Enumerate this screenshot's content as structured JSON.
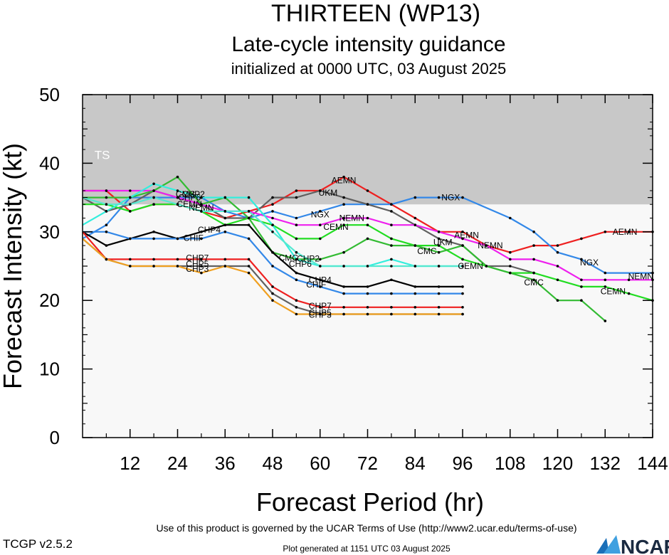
{
  "header": {
    "title": "THIRTEEN (WP13)",
    "subtitle": "Late-cycle intensity guidance",
    "init": "initialized at 0000 UTC, 03 August 2025"
  },
  "footer": {
    "terms": "Use of this product is governed by the UCAR Terms of Use (http://www2.ucar.edu/terms-of-use)",
    "generated": "Plot generated at 1151 UTC   03 August 2025",
    "version": "TCGP v2.5.2",
    "logo": "NCAR"
  },
  "chart_data": {
    "type": "line",
    "xlabel": "Forecast Period (hr)",
    "ylabel": "Forecast Intensity (kt)",
    "xlim": [
      0,
      144
    ],
    "ylim": [
      0,
      50
    ],
    "xticks": [
      12,
      24,
      36,
      48,
      60,
      72,
      84,
      96,
      108,
      120,
      132,
      144
    ],
    "yticks": [
      0,
      10,
      20,
      30,
      40,
      50
    ],
    "band": {
      "label": "TS",
      "from": 34,
      "to": 50,
      "color": "#c8c8c8"
    },
    "background_color": "#f8f8f8",
    "series": [
      {
        "name": "AEMN",
        "color": "#ee2020",
        "x": [
          0,
          6,
          12,
          18,
          24,
          30,
          36,
          42,
          48,
          54,
          60,
          66,
          72,
          78,
          84,
          90,
          96,
          102,
          108,
          114,
          120,
          126,
          132,
          138,
          144
        ],
        "values": [
          36,
          36,
          33,
          34,
          34,
          33,
          32,
          33,
          34,
          36,
          36,
          38,
          36,
          34,
          32,
          30,
          30,
          28,
          27,
          28,
          28,
          29,
          30,
          30,
          30
        ],
        "labels": [
          {
            "text": "AEMN",
            "x": 66,
            "y": 37.5
          },
          {
            "text": "AEMN",
            "x": 97,
            "y": 29.5
          },
          {
            "text": "AEMN",
            "x": 137,
            "y": 30
          }
        ]
      },
      {
        "name": "NGX",
        "color": "#3388e8",
        "x": [
          0,
          6,
          12,
          18,
          24,
          30,
          36,
          42,
          48,
          54,
          60,
          66,
          72,
          78,
          84,
          90,
          96,
          108,
          114,
          120,
          126,
          132,
          144
        ],
        "values": [
          29,
          31,
          35,
          35,
          35,
          35,
          33,
          32,
          33,
          32,
          33,
          34,
          34,
          34,
          35,
          35,
          35,
          32,
          30,
          27,
          26,
          24,
          24
        ],
        "labels": [
          {
            "text": "NGX",
            "x": 60,
            "y": 32.5
          },
          {
            "text": "NGX",
            "x": 93,
            "y": 35
          },
          {
            "text": "NGX",
            "x": 128,
            "y": 25.5
          }
        ]
      },
      {
        "name": "UKM",
        "color": "#606060",
        "x": [
          0,
          6,
          12,
          18,
          24,
          30,
          36,
          42,
          48,
          54,
          60,
          66,
          72,
          78,
          84,
          90,
          96,
          102,
          108,
          114
        ],
        "values": [
          35,
          33,
          34,
          36,
          35,
          34,
          32,
          32,
          35,
          35,
          36,
          35,
          34,
          33,
          31,
          29,
          28,
          25,
          25,
          24
        ],
        "labels": [
          {
            "text": "UKM",
            "x": 62,
            "y": 35.7
          },
          {
            "text": "UKM",
            "x": 91,
            "y": 28.5
          }
        ]
      },
      {
        "name": "NEMN",
        "color": "#ee20ee",
        "x": [
          0,
          6,
          12,
          18,
          24,
          30,
          36,
          42,
          48,
          54,
          60,
          66,
          72,
          78,
          84,
          90,
          96,
          102,
          108,
          114,
          120,
          126,
          132,
          138,
          144
        ],
        "values": [
          36,
          36,
          36,
          36,
          35,
          34,
          33,
          33,
          32,
          31,
          31,
          32,
          32,
          31,
          31,
          30,
          29,
          28,
          26,
          26,
          25,
          23,
          23,
          23,
          23
        ],
        "labels": [
          {
            "text": "NEMN",
            "x": 30,
            "y": 33.5
          },
          {
            "text": "NEMN",
            "x": 68,
            "y": 32
          },
          {
            "text": "NEMN",
            "x": 103,
            "y": 28
          },
          {
            "text": "NEMN",
            "x": 141,
            "y": 23.5
          }
        ]
      },
      {
        "name": "CEMN",
        "color": "#22dd22",
        "x": [
          0,
          6,
          12,
          18,
          24,
          30,
          36,
          42,
          48,
          54,
          60,
          66,
          72,
          78,
          84,
          90,
          96,
          102,
          108,
          114,
          120,
          126,
          132,
          138,
          144
        ],
        "values": [
          34,
          34,
          33,
          34,
          34,
          33,
          31,
          32,
          31,
          29,
          29,
          31,
          31,
          29,
          28,
          28,
          26,
          25,
          24,
          24,
          23,
          22,
          22,
          21,
          20
        ],
        "labels": [
          {
            "text": "CEMN",
            "x": 27,
            "y": 34
          },
          {
            "text": "CEMN",
            "x": 64,
            "y": 30.7
          },
          {
            "text": "CEMN",
            "x": 98,
            "y": 25
          },
          {
            "text": "CEMN",
            "x": 134,
            "y": 21.3
          }
        ]
      },
      {
        "name": "CMC",
        "color": "#33bb33",
        "x": [
          0,
          6,
          12,
          18,
          24,
          30,
          36,
          42,
          48,
          54,
          60,
          66,
          72,
          78,
          84,
          90,
          96,
          102,
          108,
          114,
          120,
          126,
          132
        ],
        "values": [
          35,
          35,
          35,
          36,
          38,
          34,
          35,
          32,
          27,
          26,
          26,
          27,
          29,
          28,
          28,
          27,
          28,
          25,
          24,
          23,
          20,
          20,
          17
        ],
        "labels": [
          {
            "text": "CMC",
            "x": 26,
            "y": 35.5
          },
          {
            "text": "CMC",
            "x": 52,
            "y": 26.2
          },
          {
            "text": "CMC",
            "x": 87,
            "y": 27.2
          },
          {
            "text": "CMC",
            "x": 114,
            "y": 22.6
          }
        ]
      },
      {
        "name": "CHP2",
        "color": "#33eedd",
        "x": [
          0,
          6,
          12,
          18,
          24,
          30,
          36,
          42,
          48,
          54,
          60,
          66,
          72,
          78,
          84,
          90,
          96
        ],
        "values": [
          31,
          33,
          35,
          37,
          36,
          35,
          35,
          35,
          31,
          26,
          25,
          25,
          25,
          26,
          25,
          25,
          25
        ],
        "labels": [
          {
            "text": "CHP2",
            "x": 28,
            "y": 35.5
          },
          {
            "text": "CHP2",
            "x": 57,
            "y": 26.1
          }
        ]
      },
      {
        "name": "CHP6",
        "color": "#55e8d0",
        "x": [
          0,
          6,
          12,
          18,
          24,
          30,
          36,
          42,
          48,
          54,
          60,
          66,
          72,
          78,
          84,
          90,
          96
        ],
        "values": [
          35,
          34,
          34,
          35,
          34,
          33,
          33,
          33,
          30,
          27,
          25,
          25,
          25,
          25,
          25,
          25,
          25
        ],
        "labels": [
          {
            "text": "CHP6",
            "x": 27,
            "y": 35
          },
          {
            "text": "CHP6",
            "x": 55,
            "y": 25.3
          }
        ]
      },
      {
        "name": "CHP4",
        "color": "#000000",
        "x": [
          0,
          6,
          12,
          18,
          24,
          30,
          36,
          42,
          48,
          54,
          60,
          66,
          72,
          78,
          84,
          90,
          96
        ],
        "values": [
          30,
          28,
          29,
          30,
          29,
          30,
          31,
          31,
          27,
          24,
          23,
          22,
          22,
          23,
          22,
          22,
          22
        ],
        "labels": [
          {
            "text": "CHP4",
            "x": 32,
            "y": 30.3
          },
          {
            "text": "CHP4",
            "x": 60,
            "y": 23
          }
        ]
      },
      {
        "name": "CHIF",
        "color": "#3388e8",
        "x": [
          0,
          6,
          12,
          18,
          24,
          30,
          36,
          42,
          48,
          54,
          60,
          66,
          72,
          78,
          84,
          90,
          96
        ],
        "values": [
          30,
          30,
          29,
          29,
          29,
          29,
          30,
          29,
          25,
          23,
          22,
          21,
          21,
          21,
          21,
          21,
          21
        ],
        "labels": [
          {
            "text": "CHIF",
            "x": 28,
            "y": 29.1
          },
          {
            "text": "CHIF",
            "x": 59,
            "y": 22.3
          }
        ]
      },
      {
        "name": "CHP7",
        "color": "#ee2020",
        "x": [
          0,
          6,
          12,
          18,
          24,
          30,
          36,
          42,
          48,
          54,
          60,
          66,
          72,
          78,
          84,
          90,
          96
        ],
        "values": [
          30,
          26,
          26,
          26,
          26,
          26,
          26,
          26,
          22,
          20,
          19,
          19,
          19,
          19,
          19,
          19,
          19
        ],
        "labels": [
          {
            "text": "CHP7",
            "x": 29,
            "y": 26.2
          },
          {
            "text": "CHP7",
            "x": 60,
            "y": 19.2
          }
        ]
      },
      {
        "name": "CHP5",
        "color": "#606060",
        "x": [
          0,
          6,
          12,
          18,
          24,
          30,
          36,
          42,
          48,
          54,
          60,
          66,
          72,
          78,
          84,
          90,
          96
        ],
        "values": [
          29,
          26,
          25,
          25,
          25,
          25,
          25,
          25,
          21,
          19,
          18,
          18,
          18,
          18,
          18,
          18,
          18
        ],
        "labels": [
          {
            "text": "CHP5",
            "x": 29,
            "y": 25.3
          },
          {
            "text": "CHP5",
            "x": 60,
            "y": 18.2
          }
        ]
      },
      {
        "name": "CHP3",
        "color": "#f0a020",
        "x": [
          0,
          6,
          12,
          18,
          24,
          30,
          36,
          42,
          48,
          54,
          60,
          66,
          72,
          78,
          84,
          90,
          96
        ],
        "values": [
          29,
          26,
          25,
          25,
          25,
          24,
          25,
          24,
          20,
          18,
          18,
          18,
          18,
          18,
          18,
          18,
          18
        ],
        "labels": [
          {
            "text": "CHP3",
            "x": 29,
            "y": 24.6
          },
          {
            "text": "CHP3",
            "x": 60,
            "y": 17.9
          }
        ]
      }
    ]
  }
}
